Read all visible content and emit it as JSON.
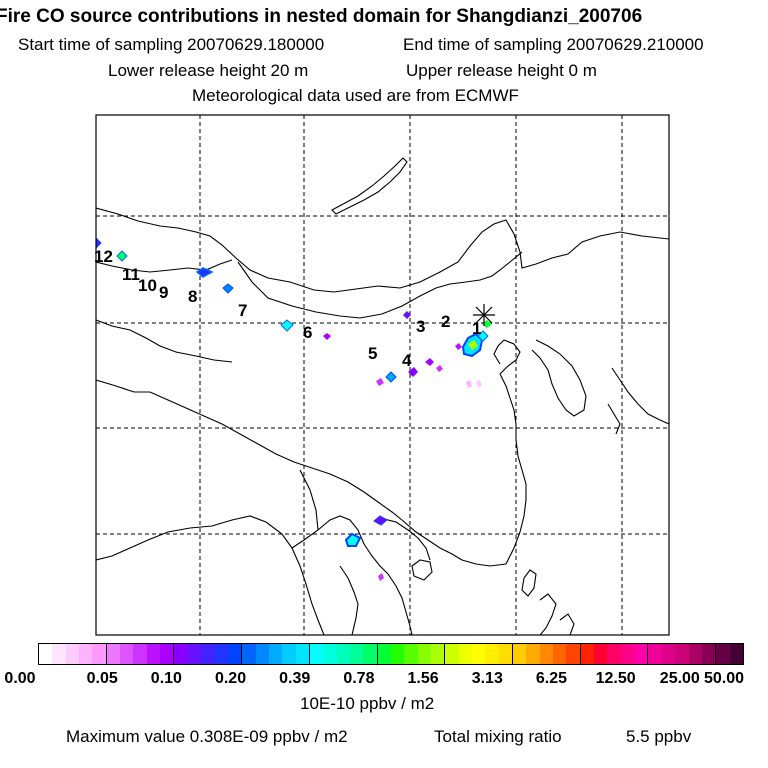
{
  "header": {
    "title": "Fire CO source contributions in nested domain for Shangdianzi_200706",
    "start_time": "Start time of sampling 20070629.180000",
    "end_time": "End time of sampling 20070629.210000",
    "lower_height": "Lower release height   20 m",
    "upper_height": "Upper release height    0 m",
    "met_data": "Meteorological data used are from ECMWF"
  },
  "map": {
    "receptor_icon": "asterisk-receptor-icon",
    "source_labels": [
      "1",
      "2",
      "3",
      "4",
      "5",
      "6",
      "7",
      "8",
      "9",
      "10",
      "11",
      "12"
    ]
  },
  "legend": {
    "colors": [
      "#ffffff",
      "#ffe6ff",
      "#ffccff",
      "#ffb3ff",
      "#ff99ff",
      "#ee77ff",
      "#dd55ff",
      "#cc33ff",
      "#bb11ff",
      "#aa00ff",
      "#8800ff",
      "#6611ff",
      "#4422ff",
      "#2233ff",
      "#0044ff",
      "#0066ff",
      "#0088ff",
      "#00aaff",
      "#00ccff",
      "#00e5ff",
      "#00ffff",
      "#00ffdd",
      "#00ffbb",
      "#00ff99",
      "#00ff66",
      "#00ff33",
      "#22ff00",
      "#55ff00",
      "#88ff00",
      "#aaff00",
      "#ccff00",
      "#eeff00",
      "#ffff00",
      "#ffee00",
      "#ffdd00",
      "#ffcc00",
      "#ffaa00",
      "#ff8800",
      "#ff6600",
      "#ff4400",
      "#ff2200",
      "#ff0033",
      "#ff0066",
      "#ff0088",
      "#ff00aa",
      "#ee0099",
      "#dd0088",
      "#cc0077",
      "#aa0066",
      "#880055",
      "#660044",
      "#440033"
    ],
    "tick_labels": [
      "0.00",
      "0.05",
      "0.10",
      "0.20",
      "0.39",
      "0.78",
      "1.56",
      "3.13",
      "6.25",
      "12.50",
      "25.00",
      "50.00"
    ],
    "unit": "10E-10 ppbv / m2"
  },
  "footer": {
    "max_value": "Maximum value  0.308E-09 ppbv / m2",
    "total_label": "Total mixing ratio",
    "total_value": "5.5 ppbv"
  }
}
